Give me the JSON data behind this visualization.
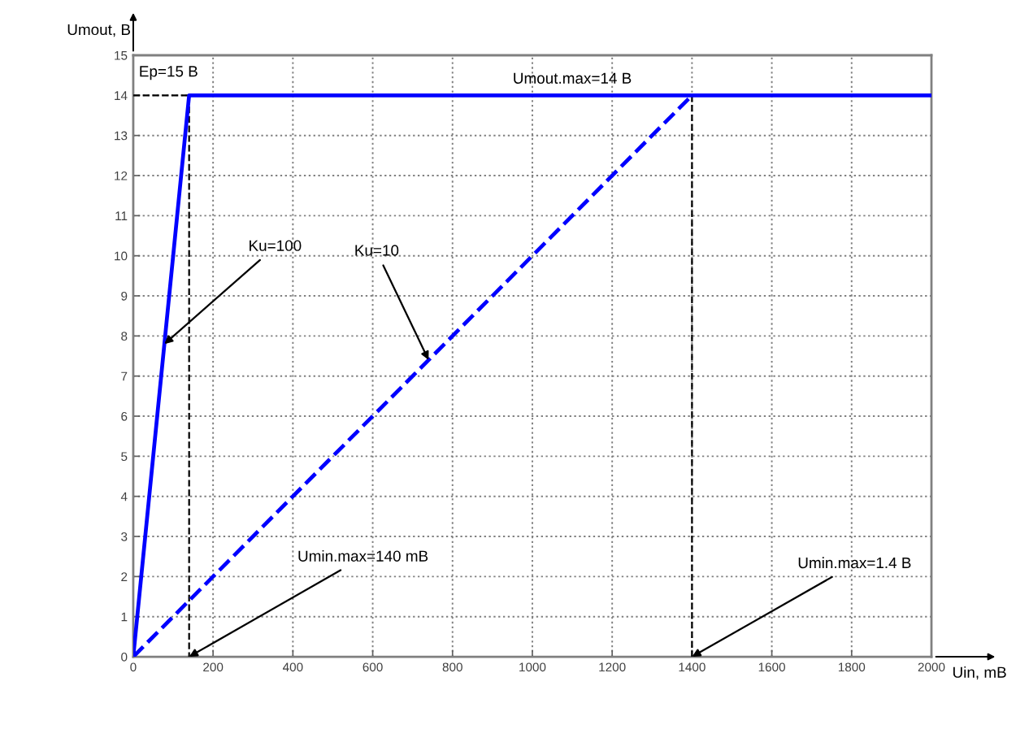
{
  "chart_data": {
    "type": "line",
    "xlabel": "Uin, mB",
    "ylabel": "Umout, B",
    "xlim": [
      0,
      2000
    ],
    "xticks": [
      0,
      200,
      400,
      600,
      800,
      1000,
      1200,
      1400,
      1600,
      1800,
      2000
    ],
    "ylim": [
      0,
      15
    ],
    "yticks": [
      0,
      1,
      2,
      3,
      4,
      5,
      6,
      7,
      8,
      9,
      10,
      11,
      12,
      13,
      14,
      15
    ],
    "grid": true,
    "series": [
      {
        "x": [
          0,
          140,
          2000
        ],
        "values": [
          0,
          14,
          14
        ],
        "color": "#0000ff",
        "line_style": "solid"
      },
      {
        "x": [
          0,
          1400
        ],
        "values": [
          0,
          14
        ],
        "color": "#0000ff",
        "line_style": "dashed"
      },
      {
        "x": [
          0,
          140,
          140
        ],
        "values": [
          14,
          14,
          0
        ],
        "color": "#000000",
        "line_style": "dashed"
      },
      {
        "x": [
          1400,
          1400
        ],
        "values": [
          14,
          0
        ],
        "color": "#000000",
        "line_style": "dashed"
      }
    ],
    "annotations": [
      "Ep=15 B",
      {
        "text": "Umout.max=14 B",
        "x": 1100,
        "y": 14
      },
      {
        "text": "Ku=100",
        "x": 78,
        "y": 7.8
      },
      {
        "text": "Ku=10",
        "x": 740,
        "y": 7.4
      },
      {
        "text": "Umin.max=140 mB",
        "x": 140,
        "y": 0
      },
      {
        "text": "Umin.max=1.4 B",
        "x": 1400,
        "y": 0
      }
    ]
  }
}
